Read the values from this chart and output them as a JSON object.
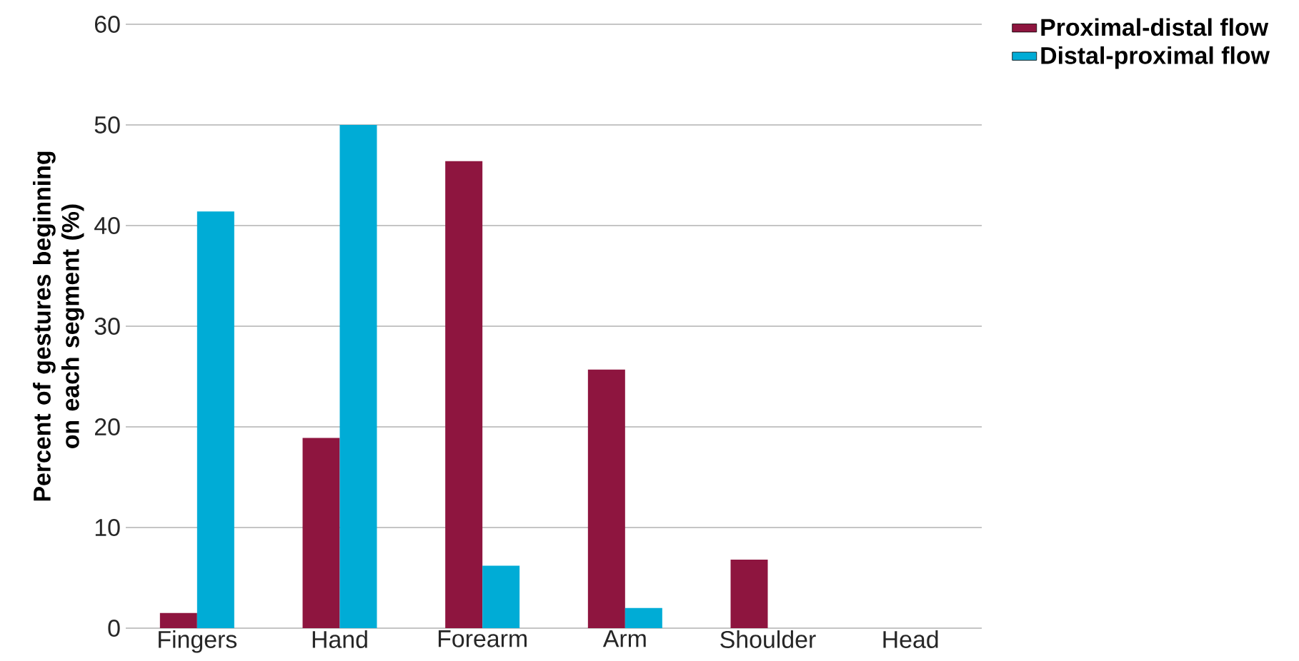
{
  "chart_data": {
    "type": "bar",
    "ylabel": "Percent of gestures beginning on each segment (%)",
    "categories": [
      "Fingers",
      "Hand",
      "Forearm",
      "Arm",
      "Shoulder",
      "Head"
    ],
    "series": [
      {
        "name": "Proximal-distal flow",
        "color": "#8e153f",
        "values": [
          1.5,
          18.9,
          46.4,
          25.7,
          6.8,
          0
        ]
      },
      {
        "name": "Distal-proximal flow",
        "color": "#00acd6",
        "values": [
          41.4,
          50,
          6.2,
          2.0,
          0,
          0
        ]
      }
    ],
    "ylim": [
      0,
      60
    ],
    "yticks": [
      0,
      10,
      20,
      30,
      40,
      50,
      60
    ],
    "grid": "y",
    "legend": "top right"
  }
}
